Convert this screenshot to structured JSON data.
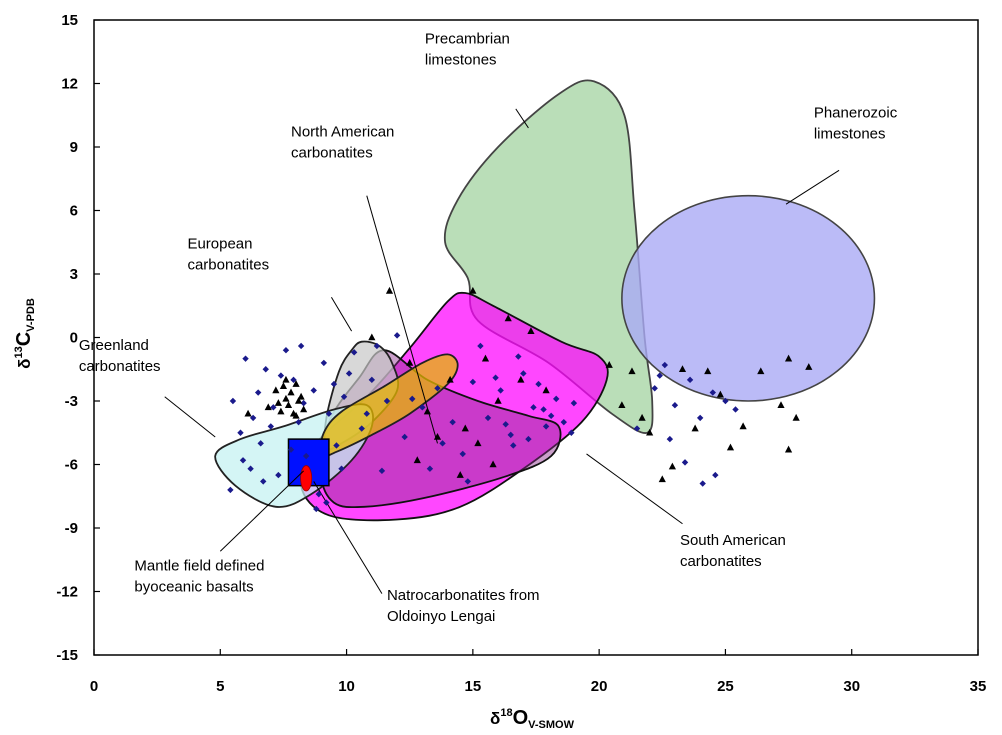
{
  "chart_data": {
    "type": "scatter",
    "xlim": [
      0,
      35
    ],
    "ylim": [
      -15,
      15
    ],
    "x_ticks": [
      "0",
      "5",
      "10",
      "15",
      "20",
      "25",
      "30",
      "35"
    ],
    "y_ticks": [
      "-15",
      "-12",
      "-9",
      "-6",
      "-3",
      "0",
      "3",
      "6",
      "9",
      "12",
      "15"
    ],
    "xlabel": {
      "prefix": "δ",
      "sup": "18",
      "main": "O",
      "sub": "V-SMOW"
    },
    "ylabel": {
      "prefix": "δ",
      "sup": "13",
      "main": "C",
      "sub": "V-PDB"
    },
    "grid": false,
    "fields": [
      {
        "name": "Precambrian limestones",
        "fill": "#a9d6a6",
        "opacity": 0.8,
        "stroke": "#444444",
        "outline": [
          [
            19.8,
            12.1
          ],
          [
            21.0,
            10.5
          ],
          [
            21.4,
            6.0
          ],
          [
            21.8,
            0.0
          ],
          [
            22.1,
            -3.0
          ],
          [
            21.9,
            -4.5
          ],
          [
            20.5,
            -3.6
          ],
          [
            18.0,
            -1.2
          ],
          [
            15.2,
            0.8
          ],
          [
            14.8,
            2.8
          ],
          [
            13.9,
            4.5
          ],
          [
            14.4,
            6.5
          ],
          [
            16.0,
            9.0
          ],
          [
            18.4,
            11.5
          ]
        ]
      },
      {
        "name": "Phanerozoic limestones",
        "fill": "#aaaaf5",
        "opacity": 0.8,
        "stroke": "#444444",
        "ellipse": {
          "cx": 25.9,
          "cy": 1.85,
          "rx": 5.0,
          "ry": 4.85
        }
      },
      {
        "name": "South American carbonatites",
        "fill": "#ff00ff",
        "opacity": 0.72,
        "stroke": "#111111",
        "outline": [
          [
            14.7,
            2.1
          ],
          [
            15.8,
            1.5
          ],
          [
            18.5,
            -0.2
          ],
          [
            20.0,
            -0.9
          ],
          [
            20.3,
            -2.0
          ],
          [
            19.3,
            -4.0
          ],
          [
            17.0,
            -6.2
          ],
          [
            14.5,
            -8.0
          ],
          [
            12.0,
            -8.6
          ],
          [
            9.3,
            -8.4
          ],
          [
            8.2,
            -7.0
          ],
          [
            8.8,
            -5.0
          ],
          [
            10.8,
            -2.8
          ],
          [
            12.5,
            -0.5
          ],
          [
            14.0,
            1.7
          ]
        ]
      },
      {
        "name": "North American carbonatites",
        "fill": "#8a2a8a",
        "opacity": 0.45,
        "stroke": "#111111",
        "outline": [
          [
            11.5,
            -0.6
          ],
          [
            13.2,
            -2.0
          ],
          [
            15.2,
            -3.0
          ],
          [
            17.2,
            -3.7
          ],
          [
            18.4,
            -4.2
          ],
          [
            18.1,
            -5.6
          ],
          [
            16.2,
            -6.6
          ],
          [
            13.0,
            -7.6
          ],
          [
            10.7,
            -8.0
          ],
          [
            9.5,
            -7.8
          ],
          [
            9.0,
            -6.5
          ],
          [
            9.3,
            -4.0
          ],
          [
            10.5,
            -1.9
          ]
        ]
      },
      {
        "name": "European carbonatites",
        "fill": "#c8c8c8",
        "opacity": 0.7,
        "stroke": "#222222",
        "outline": [
          [
            10.6,
            -0.2
          ],
          [
            11.3,
            -0.4
          ],
          [
            11.8,
            -1.2
          ],
          [
            12.0,
            -2.5
          ],
          [
            11.0,
            -4.0
          ],
          [
            9.8,
            -5.0
          ],
          [
            9.2,
            -5.2
          ],
          [
            9.2,
            -3.8
          ],
          [
            9.7,
            -1.6
          ],
          [
            10.2,
            -0.6
          ]
        ]
      },
      {
        "name": "Greenland carbonatites",
        "fill": "#c6f2f2",
        "opacity": 0.75,
        "stroke": "#222222",
        "outline": [
          [
            10.8,
            -3.2
          ],
          [
            11.0,
            -4.2
          ],
          [
            10.2,
            -5.8
          ],
          [
            8.6,
            -7.4
          ],
          [
            7.2,
            -8.0
          ],
          [
            5.6,
            -7.0
          ],
          [
            4.8,
            -5.6
          ],
          [
            5.8,
            -4.8
          ],
          [
            7.5,
            -4.2
          ],
          [
            9.5,
            -3.4
          ]
        ]
      },
      {
        "name": "Natrocarbonatites",
        "fill": "#e6b800",
        "opacity": 0.75,
        "stroke": "#222222",
        "outline": [
          [
            14.0,
            -0.8
          ],
          [
            14.4,
            -1.3
          ],
          [
            14.0,
            -2.2
          ],
          [
            12.5,
            -3.6
          ],
          [
            11.0,
            -4.6
          ],
          [
            9.6,
            -5.4
          ],
          [
            9.0,
            -5.6
          ],
          [
            9.1,
            -4.5
          ],
          [
            9.8,
            -3.5
          ],
          [
            11.5,
            -2.3
          ],
          [
            13.0,
            -1.2
          ]
        ]
      }
    ],
    "mantle_box": {
      "x": [
        7.7,
        9.3
      ],
      "y": [
        -7.0,
        -4.8
      ],
      "fill": "#0010ff",
      "stroke": "#000000"
    },
    "lengai_point": {
      "x": 8.4,
      "y": -6.65,
      "rx": 0.22,
      "ry": 0.6,
      "fill": "#ff0000"
    },
    "series": [
      {
        "marker": "diamond",
        "color": "#1a1a8c",
        "points": [
          [
            5.5,
            -3.0
          ],
          [
            5.8,
            -4.5
          ],
          [
            6.0,
            -1.0
          ],
          [
            6.3,
            -3.8
          ],
          [
            6.6,
            -5.0
          ],
          [
            6.8,
            -1.5
          ],
          [
            7.0,
            -4.2
          ],
          [
            7.3,
            -6.5
          ],
          [
            7.6,
            -0.6
          ],
          [
            7.9,
            -2.0
          ],
          [
            8.1,
            -4.0
          ],
          [
            8.4,
            -5.6
          ],
          [
            8.7,
            -2.5
          ],
          [
            8.9,
            -7.4
          ],
          [
            9.1,
            -1.2
          ],
          [
            9.3,
            -3.6
          ],
          [
            9.6,
            -5.1
          ],
          [
            9.9,
            -2.8
          ],
          [
            10.3,
            -0.7
          ],
          [
            10.6,
            -4.3
          ],
          [
            11.0,
            -2.0
          ],
          [
            11.2,
            -0.4
          ],
          [
            11.6,
            -3.0
          ],
          [
            12.0,
            0.1
          ],
          [
            5.4,
            -7.2
          ],
          [
            6.2,
            -6.2
          ],
          [
            6.7,
            -6.8
          ],
          [
            7.1,
            -3.3
          ],
          [
            7.8,
            -5.3
          ],
          [
            8.3,
            -3.1
          ],
          [
            8.8,
            -8.1
          ],
          [
            9.2,
            -7.8
          ],
          [
            9.8,
            -6.2
          ],
          [
            10.1,
            -1.7
          ],
          [
            5.9,
            -5.8
          ],
          [
            6.5,
            -2.6
          ],
          [
            7.4,
            -1.8
          ],
          [
            8.2,
            -0.4
          ],
          [
            9.5,
            -2.2
          ],
          [
            10.8,
            -3.6
          ],
          [
            11.4,
            -6.3
          ],
          [
            12.3,
            -4.7
          ],
          [
            13.0,
            -3.3
          ],
          [
            13.6,
            -2.4
          ],
          [
            14.2,
            -4.0
          ],
          [
            14.6,
            -5.5
          ],
          [
            15.0,
            -2.1
          ],
          [
            15.6,
            -3.8
          ],
          [
            16.1,
            -2.5
          ],
          [
            16.5,
            -4.6
          ],
          [
            17.0,
            -1.7
          ],
          [
            17.4,
            -3.3
          ],
          [
            17.9,
            -4.2
          ],
          [
            18.3,
            -2.9
          ],
          [
            18.6,
            -4.0
          ],
          [
            19.0,
            -3.1
          ],
          [
            16.8,
            -0.9
          ],
          [
            15.9,
            -1.9
          ],
          [
            17.6,
            -2.2
          ],
          [
            18.1,
            -3.7
          ],
          [
            13.3,
            -6.2
          ],
          [
            14.8,
            -6.8
          ],
          [
            15.3,
            -0.4
          ],
          [
            16.3,
            -4.1
          ],
          [
            16.6,
            -5.1
          ],
          [
            17.2,
            -4.8
          ],
          [
            17.8,
            -3.4
          ],
          [
            18.9,
            -4.5
          ],
          [
            13.8,
            -5.0
          ],
          [
            12.6,
            -2.9
          ],
          [
            21.5,
            -4.3
          ],
          [
            22.2,
            -2.4
          ],
          [
            22.6,
            -1.3
          ],
          [
            23.0,
            -3.2
          ],
          [
            23.6,
            -2.0
          ],
          [
            24.0,
            -3.8
          ],
          [
            24.5,
            -2.6
          ],
          [
            25.0,
            -3.0
          ],
          [
            25.4,
            -3.4
          ],
          [
            22.8,
            -4.8
          ],
          [
            23.4,
            -5.9
          ],
          [
            24.1,
            -6.9
          ],
          [
            24.6,
            -6.5
          ],
          [
            22.4,
            -1.8
          ]
        ]
      },
      {
        "marker": "triangle",
        "color": "#000000",
        "points": [
          [
            6.1,
            -3.6
          ],
          [
            6.9,
            -3.3
          ],
          [
            7.2,
            -2.5
          ],
          [
            7.3,
            -3.1
          ],
          [
            7.4,
            -3.5
          ],
          [
            7.5,
            -2.3
          ],
          [
            7.6,
            -2.9
          ],
          [
            7.7,
            -3.2
          ],
          [
            7.8,
            -2.6
          ],
          [
            7.9,
            -3.6
          ],
          [
            8.0,
            -2.2
          ],
          [
            8.1,
            -3.0
          ],
          [
            8.2,
            -2.8
          ],
          [
            8.3,
            -3.4
          ],
          [
            7.6,
            -2.0
          ],
          [
            8.0,
            -3.7
          ],
          [
            11.0,
            0.0
          ],
          [
            11.7,
            2.2
          ],
          [
            12.5,
            -1.2
          ],
          [
            13.2,
            -3.5
          ],
          [
            14.1,
            -2.0
          ],
          [
            14.7,
            -4.3
          ],
          [
            15.2,
            -5.0
          ],
          [
            15.5,
            -1.0
          ],
          [
            16.0,
            -3.0
          ],
          [
            16.9,
            -2.0
          ],
          [
            17.3,
            0.3
          ],
          [
            17.9,
            -2.5
          ],
          [
            14.5,
            -6.5
          ],
          [
            15.8,
            -6.0
          ],
          [
            13.6,
            -4.7
          ],
          [
            12.8,
            -5.8
          ],
          [
            15.0,
            2.2
          ],
          [
            16.4,
            0.9
          ],
          [
            20.4,
            -1.3
          ],
          [
            20.9,
            -3.2
          ],
          [
            21.3,
            -1.6
          ],
          [
            21.7,
            -3.8
          ],
          [
            22.0,
            -4.5
          ],
          [
            22.5,
            -6.7
          ],
          [
            22.9,
            -6.1
          ],
          [
            23.3,
            -1.5
          ],
          [
            23.8,
            -4.3
          ],
          [
            24.3,
            -1.6
          ],
          [
            24.8,
            -2.7
          ],
          [
            25.2,
            -5.2
          ],
          [
            25.7,
            -4.2
          ],
          [
            26.4,
            -1.6
          ],
          [
            27.2,
            -3.2
          ],
          [
            27.5,
            -1.0
          ],
          [
            27.5,
            -5.3
          ],
          [
            27.8,
            -3.8
          ],
          [
            28.3,
            -1.4
          ]
        ]
      }
    ],
    "annotations": [
      {
        "lines": [
          "Precambrian",
          "limestones"
        ],
        "lx": 13.1,
        "ly": 13.9,
        "anchor": "start",
        "leader": [
          [
            16.7,
            10.8
          ],
          [
            17.2,
            9.9
          ]
        ]
      },
      {
        "lines": [
          "Phanerozoic",
          "limestones"
        ],
        "lx": 28.5,
        "ly": 10.4,
        "anchor": "start",
        "leader": [
          [
            29.5,
            7.9
          ],
          [
            27.4,
            6.3
          ]
        ]
      },
      {
        "lines": [
          "North American",
          "carbonatites"
        ],
        "lx": 7.8,
        "ly": 9.5,
        "anchor": "start",
        "leader": [
          [
            10.8,
            6.7
          ],
          [
            13.6,
            -5.0
          ]
        ]
      },
      {
        "lines": [
          "European",
          "carbonatites"
        ],
        "lx": 3.7,
        "ly": 4.2,
        "anchor": "start",
        "leader": [
          [
            9.4,
            1.9
          ],
          [
            10.2,
            0.3
          ]
        ]
      },
      {
        "lines": [
          "Greenland",
          "carbonatites"
        ],
        "lx": -0.6,
        "ly": -0.6,
        "anchor": "start",
        "leader": [
          [
            2.8,
            -2.8
          ],
          [
            4.8,
            -4.7
          ]
        ]
      },
      {
        "lines": [
          "South American",
          "carbonatites"
        ],
        "lx": 23.2,
        "ly": -9.8,
        "anchor": "start",
        "leader": [
          [
            23.3,
            -8.8
          ],
          [
            19.5,
            -5.5
          ]
        ]
      },
      {
        "lines": [
          "Mantle field defined",
          "byoceanic basalts"
        ],
        "lx": 1.6,
        "ly": -11.0,
        "anchor": "start",
        "leader": [
          [
            5.0,
            -10.1
          ],
          [
            8.3,
            -6.3
          ]
        ]
      },
      {
        "lines": [
          "Natrocarbonatites from",
          "Oldoinyo Lengai"
        ],
        "lx": 11.6,
        "ly": -12.4,
        "anchor": "start",
        "leader": [
          [
            11.4,
            -12.1
          ],
          [
            8.7,
            -6.8
          ]
        ]
      }
    ]
  }
}
